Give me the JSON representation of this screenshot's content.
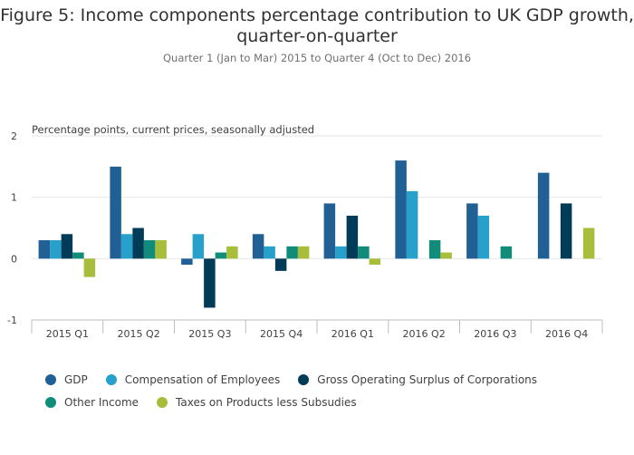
{
  "title": "Figure 5: Income components percentage contribution to UK GDP growth, quarter-on-quarter",
  "subtitle": "Quarter 1 (Jan to Mar) 2015 to Quarter 4 (Oct to Dec) 2016",
  "chart_data": {
    "type": "bar",
    "ylabel": "Percentage points, current prices, seasonally adjusted",
    "ylim": [
      -1,
      2
    ],
    "yticks": [
      "-1",
      "0",
      "1",
      "2"
    ],
    "ytick_values": [
      -1,
      0,
      1,
      2
    ],
    "grid": true,
    "legend_position": "bottom",
    "categories": [
      "2015 Q1",
      "2015 Q2",
      "2015 Q3",
      "2015 Q4",
      "2016 Q1",
      "2016 Q2",
      "2016 Q3",
      "2016 Q4"
    ],
    "series": [
      {
        "name": "GDP",
        "color": "#206095",
        "values": [
          0.3,
          1.5,
          -0.1,
          0.4,
          0.9,
          1.6,
          0.9,
          1.4
        ]
      },
      {
        "name": "Compensation of Employees",
        "color": "#27a0cc",
        "values": [
          0.3,
          0.4,
          0.4,
          0.2,
          0.2,
          1.1,
          0.7,
          0.0
        ]
      },
      {
        "name": "Gross Operating Surplus of Corporations",
        "color": "#003c57",
        "values": [
          0.4,
          0.5,
          -0.8,
          -0.2,
          0.7,
          0.0,
          0.0,
          0.9
        ]
      },
      {
        "name": "Other Income",
        "color": "#118c7b",
        "values": [
          0.1,
          0.3,
          0.1,
          0.2,
          0.2,
          0.3,
          0.2,
          0.0
        ]
      },
      {
        "name": "Taxes on Products less Subsudies",
        "color": "#a8bd3a",
        "values": [
          -0.3,
          0.3,
          0.2,
          0.2,
          -0.1,
          0.1,
          0.0,
          0.5
        ]
      }
    ]
  }
}
